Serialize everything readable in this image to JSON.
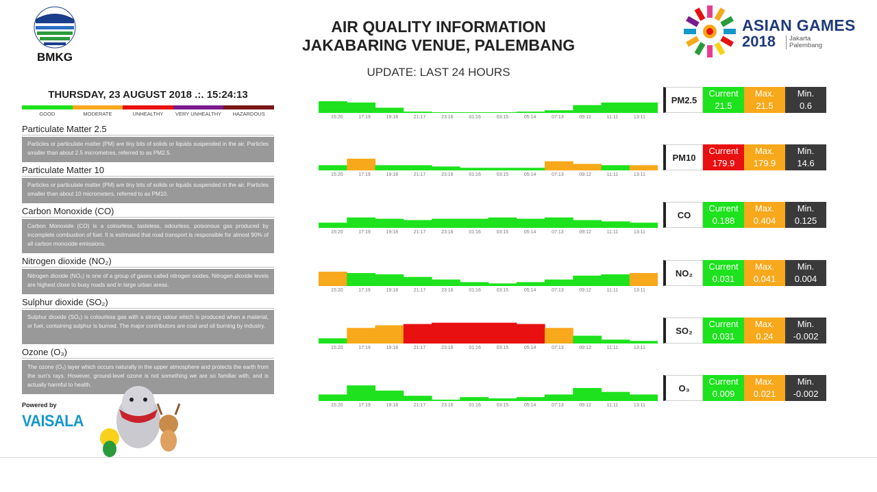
{
  "header": {
    "title_line1": "AIR QUALITY INFORMATION",
    "title_line2": "JAKABARING VENUE, PALEMBANG",
    "subtitle": "UPDATE: LAST 24 HOURS",
    "bmkg": "BMKG",
    "ag_name": "ASIAN GAMES",
    "ag_year": "2018",
    "ag_city1": "Jakarta",
    "ag_city2": "Palembang"
  },
  "datetime": "THURSDAY, 23 AUGUST 2018  .:.  15:24:13",
  "scale": {
    "labels": [
      "GOOD",
      "MODERATE",
      "UNHEALTHY",
      "VERY UNHEALTHY",
      "HAZARDOUS"
    ],
    "colors": [
      "#1de21d",
      "#f7a81b",
      "#e81010",
      "#7a1a8c",
      "#7a1616"
    ]
  },
  "colors": {
    "good": "#1de21d",
    "moderate": "#f7a81b",
    "unhealthy": "#e81010",
    "min": "#3a3a3a"
  },
  "sections": [
    {
      "title": "Particulate Matter 2.5",
      "desc": "Particles or particulate matter (PM) are tiny bits of solids or liquids suspended in the air. Particles smaller than about 2.5 micrometres, referred to as PM2.5."
    },
    {
      "title": "Particulate Matter 10",
      "desc": "Particles or particulate matter (PM) are tiny bits of solids or liquids suspended in the air. Particles smaller than about 10 micrometers, referred to as PM10."
    },
    {
      "title": "Carbon Monoxide (CO)",
      "desc": "Carbon Monoxide (CO) is a colourless, tasteless, odourless, poisonous gas produced by incomplete combustion of fuel. It is estimated that road transport is responsible for almost 90% of all carbon monoxide emissions."
    },
    {
      "title": "Nitrogen dioxide (NO₂)",
      "desc": "Nitrogen dioxide (NO₂) is one of a group of gases called nitrogen oxides. Nitrogen dioxide levels are highest close to busy roads and in large urban areas."
    },
    {
      "title": "Sulphur dioxide (SO₂)",
      "desc": "Sulphur dioxide (SO₂) is colourless gas with a strong odour which is produced when a material, or fuel, containing sulphur is burned. The major contributors are coal and oil burning by industry."
    },
    {
      "title": "Ozone (O₃)",
      "desc": "The ozone (O₃) layer which occurs naturally in the upper atmosphere and protects the earth from the sun's rays. However, ground-level ozone is not something we are so familiar with, and is actually harmful to health."
    }
  ],
  "powered_by": "Powered by",
  "vaisala": "VAISALA",
  "time_ticks": [
    "15:20",
    "17:19",
    "19:18",
    "21:17",
    "23:16",
    "01:16",
    "03:15",
    "05:14",
    "07:13",
    "09:12",
    "11:11",
    "13:11"
  ],
  "pollutants": [
    {
      "name": "PM2.5",
      "current_label": "Current",
      "current": "21.5",
      "current_color": "#1de21d",
      "max_label": "Max.",
      "max": "21.5",
      "max_color": "#f7a81b",
      "min_label": "Min.",
      "min": "0.6"
    },
    {
      "name": "PM10",
      "current_label": "Current",
      "current": "179.9",
      "current_color": "#e81010",
      "max_label": "Max.",
      "max": "179.9",
      "max_color": "#f7a81b",
      "min_label": "Min.",
      "min": "14.6"
    },
    {
      "name": "CO",
      "current_label": "Current",
      "current": "0.188",
      "current_color": "#1de21d",
      "max_label": "Max.",
      "max": "0.404",
      "max_color": "#f7a81b",
      "min_label": "Min.",
      "min": "0.125"
    },
    {
      "name": "NO₂",
      "current_label": "Current",
      "current": "0.031",
      "current_color": "#1de21d",
      "max_label": "Max.",
      "max": "0.041",
      "max_color": "#f7a81b",
      "min_label": "Min.",
      "min": "0.004"
    },
    {
      "name": "SO₂",
      "current_label": "Current",
      "current": "0.031",
      "current_color": "#1de21d",
      "max_label": "Max.",
      "max": "0.24",
      "max_color": "#f7a81b",
      "min_label": "Min.",
      "min": "-0.002"
    },
    {
      "name": "O₃",
      "current_label": "Current",
      "current": "0.009",
      "current_color": "#1de21d",
      "max_label": "Max.",
      "max": "0.021",
      "max_color": "#f7a81b",
      "min_label": "Min.",
      "min": "-0.002"
    }
  ],
  "chart_data": [
    {
      "type": "area",
      "name": "PM2.5",
      "x": [
        "15:20",
        "17:19",
        "19:18",
        "21:17",
        "23:16",
        "01:16",
        "03:15",
        "05:14",
        "07:13",
        "09:12",
        "11:11",
        "13:11"
      ],
      "values": [
        0.45,
        0.4,
        0.2,
        0.05,
        0.02,
        0.02,
        0.02,
        0.05,
        0.1,
        0.3,
        0.4,
        0.4
      ],
      "colors": [
        "good",
        "good",
        "good",
        "good",
        "good",
        "good",
        "good",
        "good",
        "good",
        "good",
        "good",
        "good"
      ]
    },
    {
      "type": "area",
      "name": "PM10",
      "x": [
        "15:20",
        "17:19",
        "19:18",
        "21:17",
        "23:16",
        "01:16",
        "03:15",
        "05:14",
        "07:13",
        "09:12",
        "11:11",
        "13:11"
      ],
      "values": [
        0.2,
        0.45,
        0.2,
        0.2,
        0.15,
        0.1,
        0.1,
        0.1,
        0.35,
        0.25,
        0.2,
        0.2
      ],
      "colors": [
        "good",
        "moderate",
        "good",
        "good",
        "good",
        "good",
        "good",
        "good",
        "moderate",
        "moderate",
        "good",
        "moderate"
      ]
    },
    {
      "type": "area",
      "name": "CO",
      "x": [
        "15:20",
        "17:19",
        "19:18",
        "21:17",
        "23:16",
        "01:16",
        "03:15",
        "05:14",
        "07:13",
        "09:12",
        "11:11",
        "13:11"
      ],
      "values": [
        0.2,
        0.4,
        0.35,
        0.3,
        0.35,
        0.35,
        0.4,
        0.35,
        0.4,
        0.3,
        0.25,
        0.2
      ],
      "colors": [
        "good",
        "good",
        "good",
        "good",
        "good",
        "good",
        "good",
        "good",
        "good",
        "good",
        "good",
        "good"
      ]
    },
    {
      "type": "area",
      "name": "NO₂",
      "x": [
        "15:20",
        "17:19",
        "19:18",
        "21:17",
        "23:16",
        "01:16",
        "03:15",
        "05:14",
        "07:13",
        "09:12",
        "11:11",
        "13:11"
      ],
      "values": [
        0.55,
        0.5,
        0.45,
        0.35,
        0.25,
        0.15,
        0.1,
        0.15,
        0.25,
        0.4,
        0.45,
        0.5
      ],
      "colors": [
        "moderate",
        "good",
        "good",
        "good",
        "good",
        "good",
        "good",
        "good",
        "good",
        "good",
        "good",
        "moderate"
      ]
    },
    {
      "type": "area",
      "name": "SO₂",
      "x": [
        "15:20",
        "17:19",
        "19:18",
        "21:17",
        "23:16",
        "01:16",
        "03:15",
        "05:14",
        "07:13",
        "09:12",
        "11:11",
        "13:11"
      ],
      "values": [
        0.2,
        0.6,
        0.7,
        0.75,
        0.8,
        0.8,
        0.8,
        0.75,
        0.6,
        0.3,
        0.15,
        0.1
      ],
      "colors": [
        "good",
        "moderate",
        "moderate",
        "unhealthy",
        "unhealthy",
        "unhealthy",
        "unhealthy",
        "unhealthy",
        "moderate",
        "good",
        "good",
        "good"
      ]
    },
    {
      "type": "area",
      "name": "O₃",
      "x": [
        "15:20",
        "17:19",
        "19:18",
        "21:17",
        "23:16",
        "01:16",
        "03:15",
        "05:14",
        "07:13",
        "09:12",
        "11:11",
        "13:11"
      ],
      "values": [
        0.25,
        0.6,
        0.4,
        0.2,
        0.05,
        0.15,
        0.1,
        0.15,
        0.25,
        0.5,
        0.35,
        0.25
      ],
      "colors": [
        "good",
        "good",
        "good",
        "good",
        "good",
        "good",
        "good",
        "good",
        "good",
        "good",
        "good",
        "good"
      ]
    }
  ]
}
